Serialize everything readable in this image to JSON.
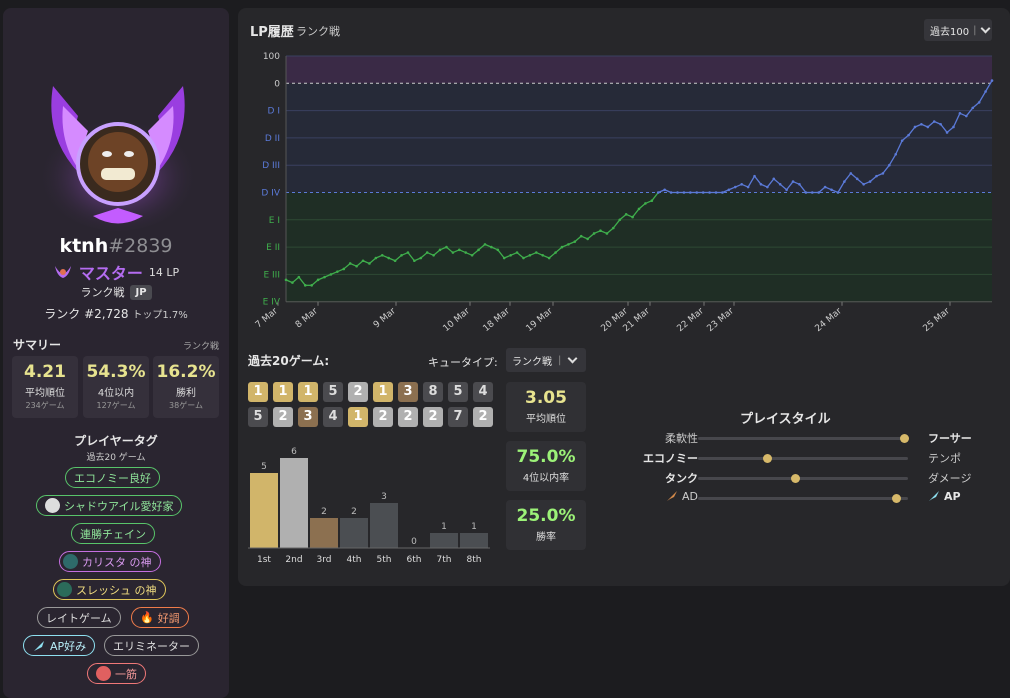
{
  "profile": {
    "name": "ktnh",
    "tag": "#2839",
    "tier": "マスター",
    "lp": "14 LP",
    "queue": "ランク戦",
    "region": "JP",
    "ladder": "ランク #2,728",
    "top": "トップ1.7%"
  },
  "summary": {
    "title": "サマリー",
    "queue": "ランク戦",
    "stats": [
      {
        "value": "4.21",
        "label": "平均順位",
        "sub": "234ゲーム"
      },
      {
        "value": "54.3%",
        "label": "4位以内",
        "sub": "127ゲーム"
      },
      {
        "value": "16.2%",
        "label": "勝利",
        "sub": "38ゲーム"
      }
    ]
  },
  "tags": {
    "title": "プレイヤータグ",
    "subtitle": "過去20 ゲーム",
    "items": [
      {
        "label": "エコノミー良好",
        "color": "#58c46a"
      },
      {
        "label": "シャドウアイル愛好家",
        "color": "#58c46a",
        "icon": "shadow-isles-icon"
      },
      {
        "label": "連勝チェイン",
        "color": "#58c46a"
      },
      {
        "label": "カリスタ の神",
        "color": "#c56fe0",
        "icon": "kalista-icon"
      },
      {
        "label": "スレッシュ の神",
        "color": "#e0c75a",
        "icon": "thresh-icon"
      },
      {
        "label": "レイトゲーム",
        "color": "#bbbbbb"
      },
      {
        "label": "好調",
        "color": "#f07c4a",
        "icon": "fire-icon"
      },
      {
        "label": "AP好み",
        "color": "#8ee0f0",
        "icon": "ap-icon"
      },
      {
        "label": "エリミネーター",
        "color": "#bbbbbb"
      },
      {
        "label": "一筋",
        "color": "#f07878",
        "icon": "horse-icon"
      }
    ]
  },
  "lp_history": {
    "title": "LP履歴",
    "subtitle": "ランク戦",
    "range": "過去100"
  },
  "chart_data": {
    "type": "line",
    "y_ticks": [
      "100",
      "0",
      "D I",
      "D II",
      "D III",
      "D IV",
      "E I",
      "E II",
      "E III",
      "E IV"
    ],
    "x_ticks": [
      "7 Mar",
      "8 Mar",
      "9 Mar",
      "10 Mar",
      "18 Mar",
      "19 Mar",
      "20 Mar",
      "21 Mar",
      "22 Mar",
      "23 Mar",
      "24 Mar",
      "25 Mar"
    ],
    "series": [
      {
        "values": [
          -720,
          -730,
          -710,
          -740,
          -740,
          -720,
          -710,
          -700,
          -690,
          -680,
          -660,
          -670,
          -650,
          -660,
          -640,
          -630,
          -640,
          -650,
          -630,
          -620,
          -650,
          -640,
          -620,
          -630,
          -610,
          -600,
          -620,
          -610,
          -620,
          -630,
          -610,
          -590,
          -600,
          -610,
          -640,
          -630,
          -620,
          -640,
          -630,
          -620,
          -630,
          -640,
          -620,
          -600,
          -590,
          -580,
          -560,
          -570,
          -550,
          -540,
          -550,
          -530,
          -500,
          -480,
          -490,
          -460,
          -440,
          -430,
          -400,
          -390,
          -400,
          -400,
          -400,
          -400,
          -400,
          -400,
          -400,
          -400,
          -400,
          -390,
          -380,
          -370,
          -380,
          -340,
          -370,
          -380,
          -350,
          -370,
          -390,
          -360,
          -370,
          -400,
          -400,
          -400,
          -380,
          -390,
          -400,
          -360,
          -330,
          -350,
          -370,
          -360,
          -340,
          -330,
          -300,
          -260,
          -210,
          -190,
          -160,
          -150,
          -160,
          -140,
          -150,
          -180,
          -160,
          -110,
          -120,
          -90,
          -70,
          -30,
          10
        ]
      }
    ]
  },
  "games": {
    "title": "過去20ゲーム:",
    "queue_label": "キュータイプ:",
    "queue_value": "ランク戦",
    "placements": [
      1,
      1,
      1,
      5,
      2,
      1,
      3,
      8,
      5,
      4,
      5,
      2,
      3,
      4,
      1,
      2,
      2,
      2,
      7,
      2
    ],
    "avg": {
      "value": "3.05",
      "label": "平均順位"
    },
    "top4": {
      "value": "75.0%",
      "label": "4位以内率"
    },
    "win": {
      "value": "25.0%",
      "label": "勝率"
    },
    "dist": {
      "labels": [
        "1st",
        "2nd",
        "3rd",
        "4th",
        "5th",
        "6th",
        "7th",
        "8th"
      ],
      "values": [
        5,
        6,
        2,
        2,
        3,
        0,
        1,
        1
      ]
    }
  },
  "playstyle": {
    "title": "プレイスタイル",
    "rows": [
      {
        "left": "柔軟性",
        "right": "フーサー",
        "value": 1.0,
        "bold": "right"
      },
      {
        "left": "エコノミー",
        "right": "テンポ",
        "value": 0.32,
        "bold": "left"
      },
      {
        "left": "タンク",
        "right": "ダメージ",
        "value": 0.46,
        "bold": "left"
      },
      {
        "left": "AD",
        "right": "AP",
        "value": 0.96,
        "bold": "right"
      }
    ]
  },
  "colors": {
    "place1": "#d1b56a",
    "place2": "#b0b0b0",
    "place3": "#8c7050",
    "placeOther": "#4b4b4f",
    "diamond": "#5b7ad8",
    "emerald": "#3fae4c",
    "master": "#b46cf0"
  }
}
